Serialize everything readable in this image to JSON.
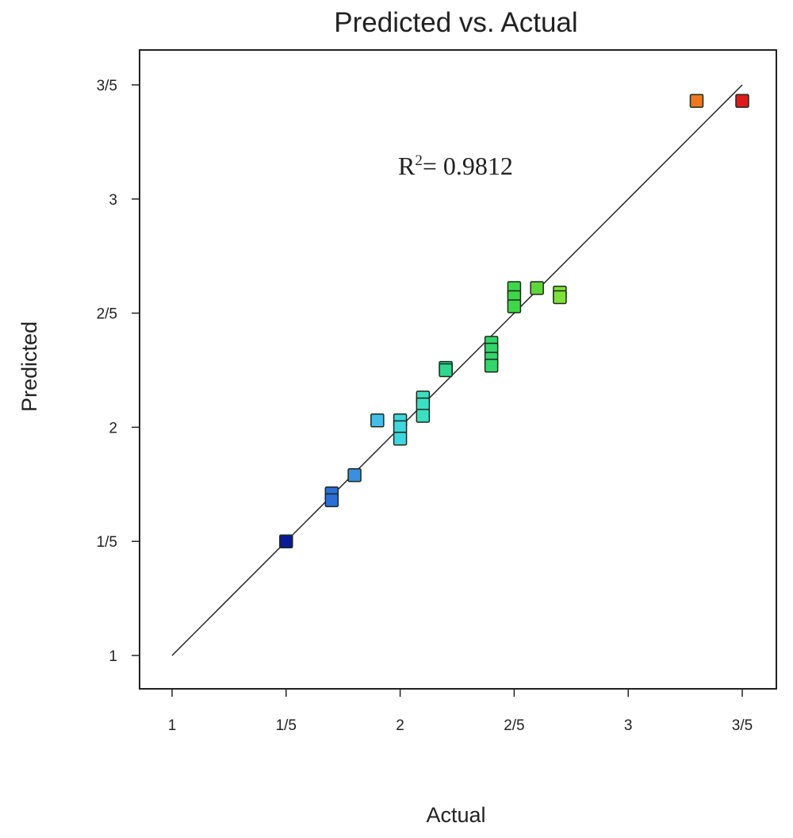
{
  "chart_data": {
    "type": "scatter",
    "title": "Predicted vs. Actual",
    "xlabel": "Actual",
    "ylabel": "Predicted",
    "xlim": [
      1,
      3.5
    ],
    "ylim": [
      1,
      3.5
    ],
    "x_ticks": [
      {
        "value": 1,
        "label": "1"
      },
      {
        "value": 1.5,
        "label": "1/5"
      },
      {
        "value": 2,
        "label": "2"
      },
      {
        "value": 2.5,
        "label": "2/5"
      },
      {
        "value": 3,
        "label": "3"
      },
      {
        "value": 3.5,
        "label": "3/5"
      }
    ],
    "y_ticks": [
      {
        "value": 1,
        "label": "1"
      },
      {
        "value": 1.5,
        "label": "1/5"
      },
      {
        "value": 2,
        "label": "2"
      },
      {
        "value": 2.5,
        "label": "2/5"
      },
      {
        "value": 3,
        "label": "3"
      },
      {
        "value": 3.5,
        "label": "3/5"
      }
    ],
    "reference_line": {
      "from": [
        1,
        1
      ],
      "to": [
        3.5,
        3.5
      ]
    },
    "annotation": {
      "prefix": "R",
      "superscript": "2",
      "text": "= 0.9812"
    },
    "grid": false,
    "points": [
      {
        "x": 1.5,
        "y": 1.5,
        "color": "#0a1a96"
      },
      {
        "x": 1.7,
        "y": 1.71,
        "color": "#2b6fd6"
      },
      {
        "x": 1.7,
        "y": 1.68,
        "color": "#2b6fd6"
      },
      {
        "x": 1.8,
        "y": 1.79,
        "color": "#3a8fe0"
      },
      {
        "x": 1.9,
        "y": 2.03,
        "color": "#44bde8"
      },
      {
        "x": 2.0,
        "y": 2.03,
        "color": "#3fd6e0"
      },
      {
        "x": 2.0,
        "y": 2.0,
        "color": "#3fd6e0"
      },
      {
        "x": 2.0,
        "y": 1.95,
        "color": "#3fd6e0"
      },
      {
        "x": 2.1,
        "y": 2.13,
        "color": "#3ddfc4"
      },
      {
        "x": 2.1,
        "y": 2.1,
        "color": "#3ddfc4"
      },
      {
        "x": 2.1,
        "y": 2.05,
        "color": "#3ddfc4"
      },
      {
        "x": 2.2,
        "y": 2.26,
        "color": "#33d68f"
      },
      {
        "x": 2.2,
        "y": 2.25,
        "color": "#33d68f"
      },
      {
        "x": 2.4,
        "y": 2.37,
        "color": "#33d46c"
      },
      {
        "x": 2.4,
        "y": 2.34,
        "color": "#33d46c"
      },
      {
        "x": 2.4,
        "y": 2.3,
        "color": "#33d46c"
      },
      {
        "x": 2.4,
        "y": 2.27,
        "color": "#33d46c"
      },
      {
        "x": 2.5,
        "y": 2.61,
        "color": "#3fd64a"
      },
      {
        "x": 2.5,
        "y": 2.57,
        "color": "#3fd64a"
      },
      {
        "x": 2.5,
        "y": 2.53,
        "color": "#3fd64a"
      },
      {
        "x": 2.6,
        "y": 2.61,
        "color": "#5ed63a"
      },
      {
        "x": 2.7,
        "y": 2.59,
        "color": "#7ee03a"
      },
      {
        "x": 2.7,
        "y": 2.57,
        "color": "#7ee03a"
      },
      {
        "x": 3.3,
        "y": 3.43,
        "color": "#f07820"
      },
      {
        "x": 3.5,
        "y": 3.43,
        "color": "#e01a1a"
      }
    ]
  }
}
